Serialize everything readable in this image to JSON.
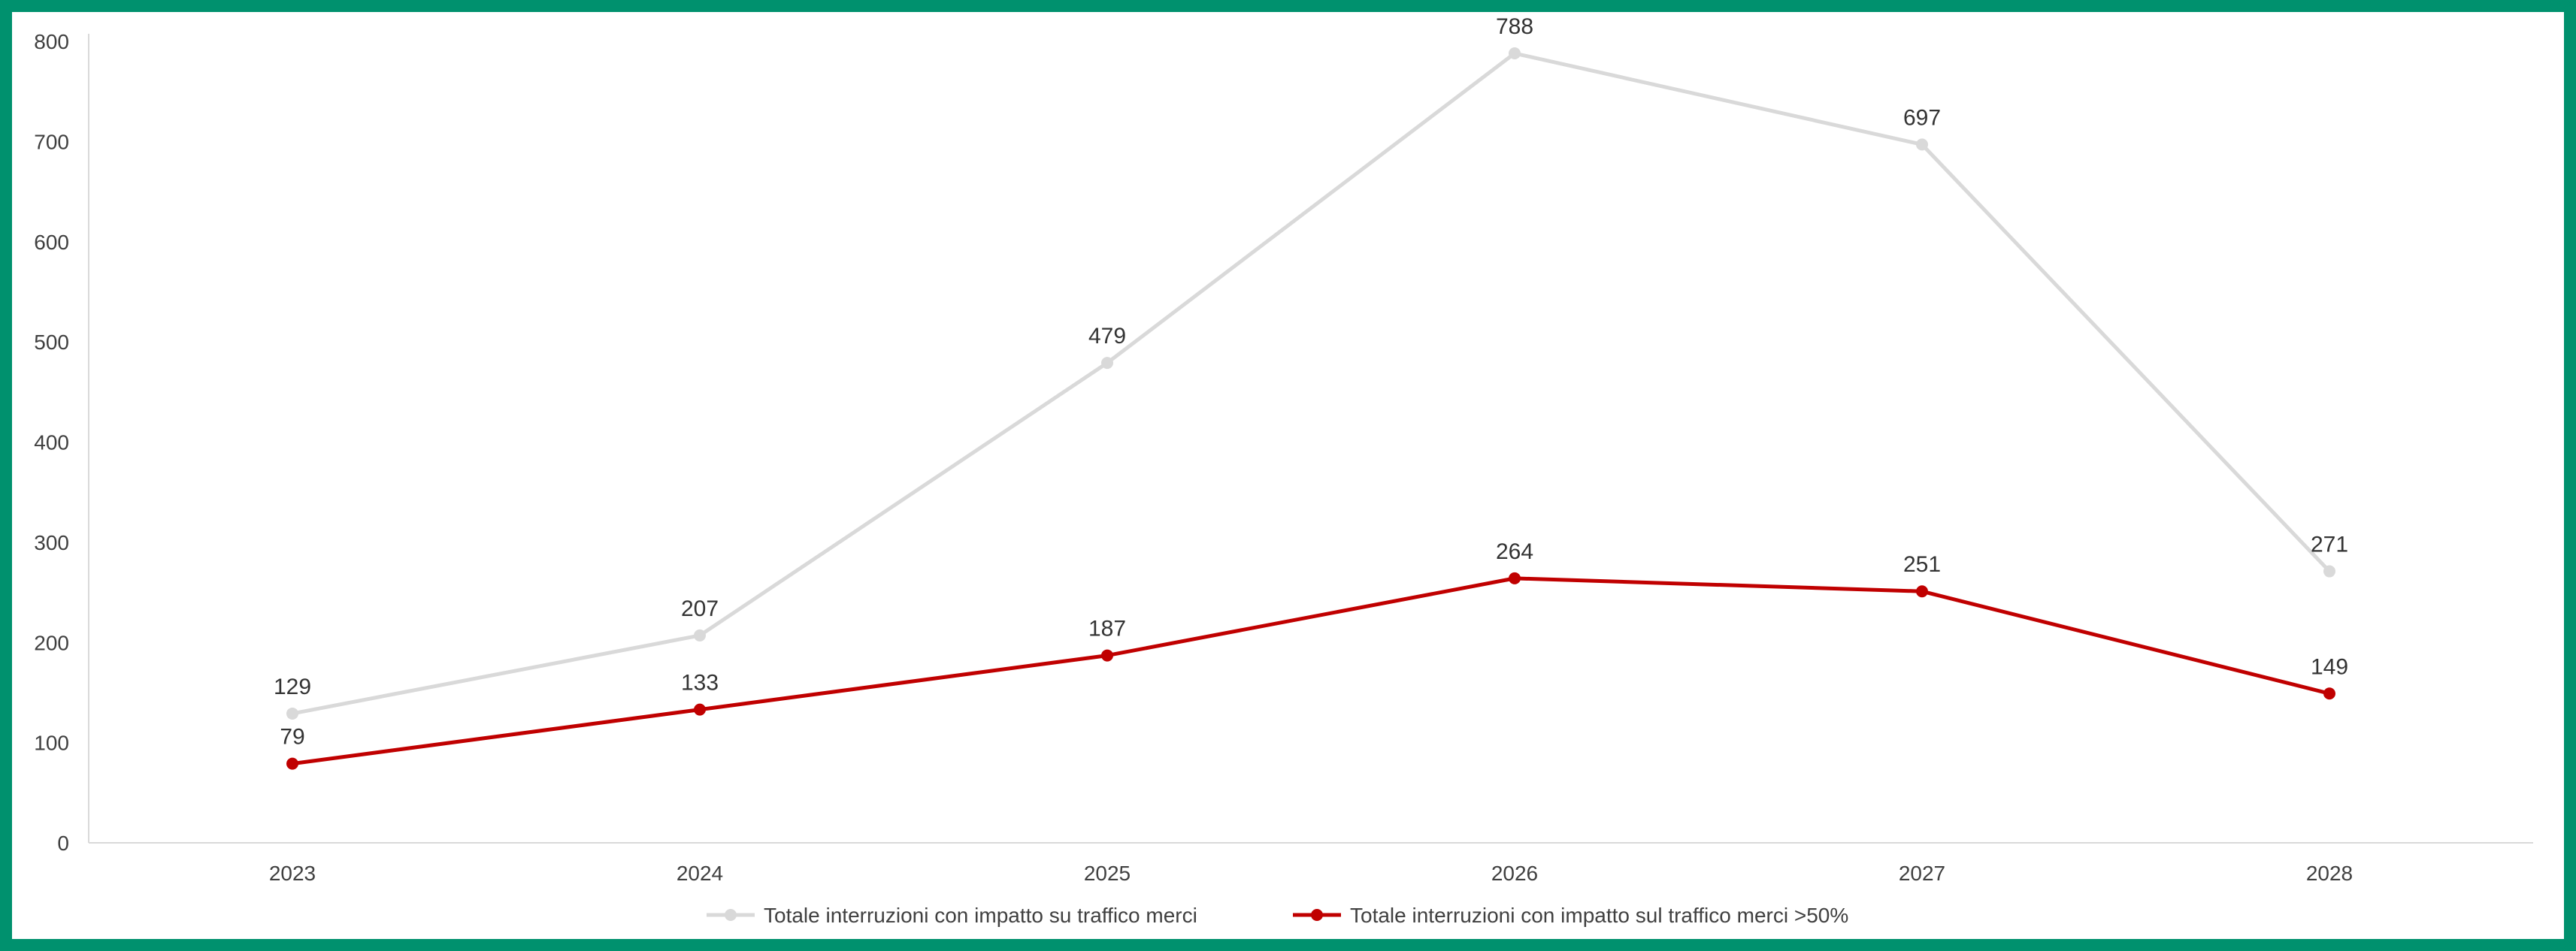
{
  "chart_data": {
    "type": "line",
    "title": "",
    "xlabel": "",
    "ylabel": "",
    "categories": [
      "2023",
      "2024",
      "2025",
      "2026",
      "2027",
      "2028"
    ],
    "ylim": [
      0,
      800
    ],
    "yticks": [
      0,
      100,
      200,
      300,
      400,
      500,
      600,
      700,
      800
    ],
    "grid": false,
    "legend_position": "bottom",
    "series": [
      {
        "name": "Totale interruzioni con impatto su traffico merci",
        "values": [
          129,
          207,
          479,
          788,
          697,
          271
        ],
        "color": "#d9d9d9"
      },
      {
        "name": "Totale interruzioni con impatto sul traffico merci >50%",
        "values": [
          79,
          133,
          187,
          264,
          251,
          149
        ],
        "color": "#c00000"
      }
    ]
  },
  "frame_color": "#00916e"
}
